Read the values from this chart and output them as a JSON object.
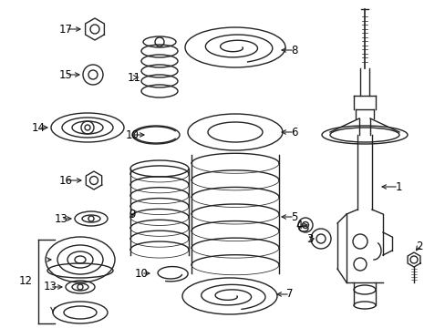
{
  "background_color": "#ffffff",
  "line_color": "#222222",
  "label_color": "#000000",
  "font_size": 8.5,
  "lw": 1.0
}
